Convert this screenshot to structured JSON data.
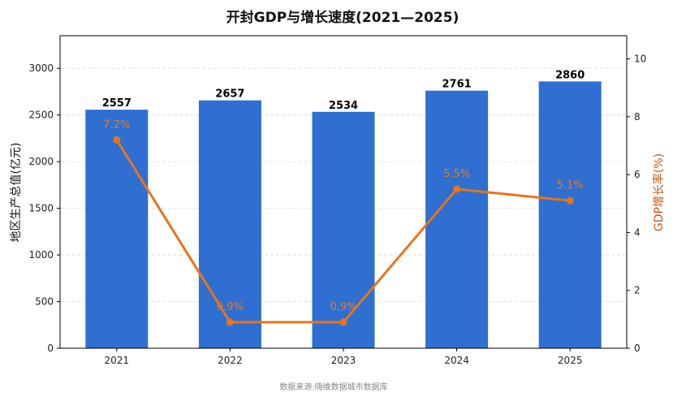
{
  "chart_data": {
    "type": "bar",
    "title": "开封GDP与增长速度(2021—2025)",
    "categories": [
      "2021",
      "2022",
      "2023",
      "2024",
      "2025"
    ],
    "series": [
      {
        "name": "地区生产总值(亿元)",
        "type": "bar",
        "values": [
          2557,
          2657,
          2534,
          2761,
          2860
        ],
        "color": "#2f6fd1",
        "axis": "left"
      },
      {
        "name": "GDP增长率(%)",
        "type": "line",
        "values": [
          7.2,
          0.9,
          0.9,
          5.5,
          5.1
        ],
        "labels": [
          "7.2%",
          "0.9%",
          "0.9%",
          "5.5%",
          "5.1%"
        ],
        "color": "#e8741c",
        "axis": "right"
      }
    ],
    "ylabel": "地区生产总值(亿元)",
    "y2label": "GDP增长率(%)",
    "ylim": [
      0,
      3350
    ],
    "yticks": [
      0,
      500,
      1000,
      1500,
      2000,
      2500,
      3000
    ],
    "y2lim": [
      0,
      10.8
    ],
    "y2ticks": [
      0,
      2,
      4,
      6,
      8,
      10
    ],
    "grid": true,
    "source": "数据来源:嗨维数据城市数据库"
  }
}
